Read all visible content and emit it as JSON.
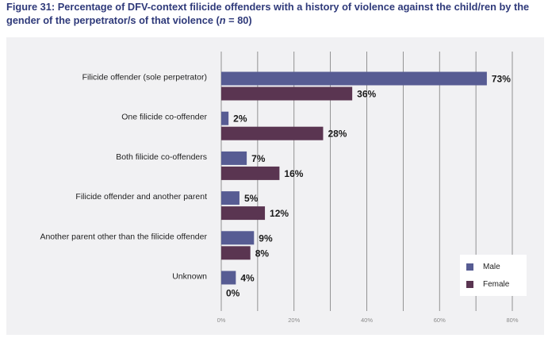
{
  "title": {
    "prefix": "Figure 31: Percentage of DFV-context filicide offenders with a history of violence against the child/ren by the gender of the perpetrator/s of that violence (",
    "n_var": "n",
    "suffix": " = 80)"
  },
  "colors": {
    "male": "#575c93",
    "female": "#5a3551",
    "grid": "#7a7a7a",
    "panel": "#f1f1f3"
  },
  "chart_data": {
    "type": "bar",
    "orientation": "horizontal",
    "title": "Figure 31: Percentage of DFV-context filicide offenders with a history of violence against the child/ren by the gender of the perpetrator/s of that violence (n = 80)",
    "categories": [
      "Filicide offender (sole perpetrator)",
      "One filicide co-offender",
      "Both filicide co-offenders",
      "Filicide offender and another parent",
      "Another parent other than the filicide offender",
      "Unknown"
    ],
    "series": [
      {
        "name": "Male",
        "values": [
          73,
          2,
          7,
          5,
          9,
          4
        ],
        "labels": [
          "73%",
          "2%",
          "7%",
          "5%",
          "9%",
          "4%"
        ]
      },
      {
        "name": "Female",
        "values": [
          36,
          28,
          16,
          12,
          8,
          0
        ],
        "labels": [
          "36%",
          "28%",
          "16%",
          "12%",
          "8%",
          "0%"
        ]
      }
    ],
    "xlim": [
      0,
      80
    ],
    "xticks": [
      0,
      10,
      20,
      30,
      40,
      50,
      60,
      70,
      80
    ],
    "xtick_labels": [
      "0%",
      "20%",
      "40%",
      "60%",
      "80%"
    ],
    "xtick_label_values": [
      0,
      20,
      40,
      60,
      80
    ],
    "grid": true,
    "legend_position": "bottom-right"
  }
}
